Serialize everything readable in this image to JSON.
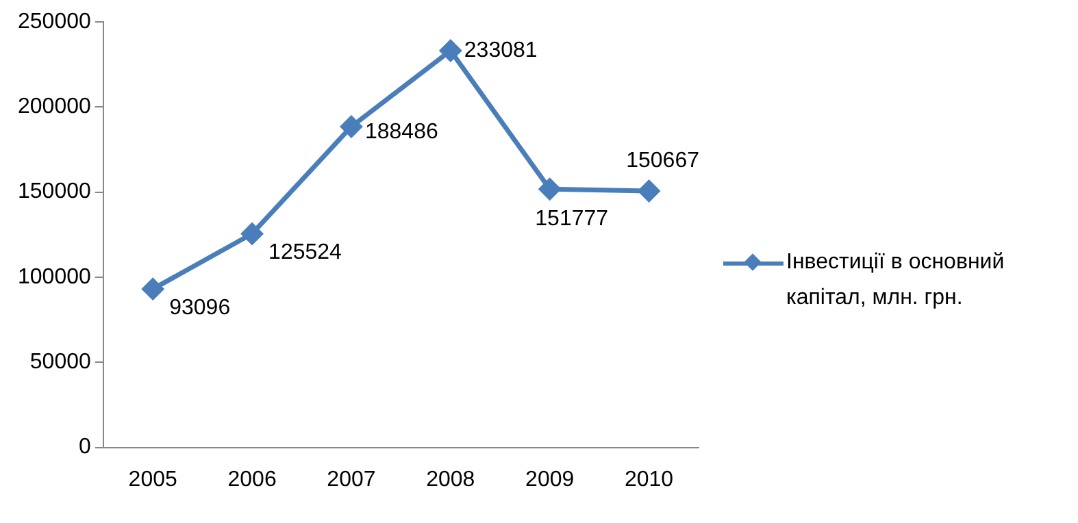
{
  "chart_data": {
    "type": "line",
    "categories": [
      "2005",
      "2006",
      "2007",
      "2008",
      "2009",
      "2010"
    ],
    "series": [
      {
        "name": "Інвестиції в основний капітал,  млн. грн.",
        "color": "#4a7ebb",
        "values": [
          93096,
          125524,
          188486,
          233081,
          151777,
          150667
        ]
      }
    ],
    "ylim": [
      0,
      250000
    ],
    "yticks": [
      0,
      50000,
      100000,
      150000,
      200000,
      250000
    ],
    "grid": false,
    "legend": "right",
    "marker": "diamond",
    "line_style": "solid",
    "data_labels": true
  }
}
